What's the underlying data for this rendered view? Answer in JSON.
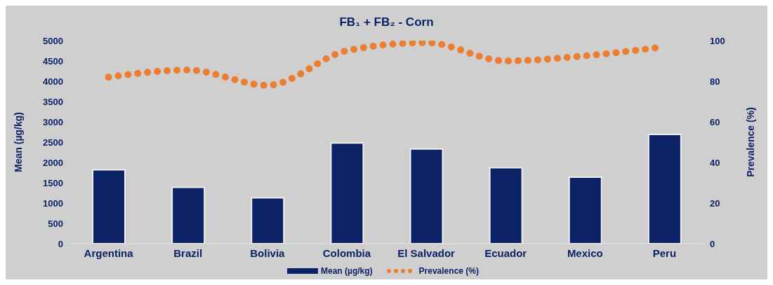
{
  "chart_data": {
    "type": "bar",
    "title": "FB₁ + FB₂ - Corn",
    "ylabel": "Mean (µg/kg)",
    "y2label": "Prevalence (%)",
    "categories": [
      "Argentina",
      "Brazil",
      "Bolivia",
      "Colombia",
      "El Salvador",
      "Ecuador",
      "Mexico",
      "Peru"
    ],
    "series": [
      {
        "name": "Mean (µg/kg)",
        "color": "#0b2366",
        "values": [
          1820,
          1390,
          1130,
          2480,
          2330,
          1870,
          1640,
          2690
        ]
      },
      {
        "name": "Prevalence (%)",
        "type": "line",
        "axis": "y2",
        "color": "#ed7d31",
        "line_style": "dotted",
        "marker": "none",
        "values": [
          82,
          85.5,
          78,
          95,
          99,
          90,
          92.5,
          97
        ]
      }
    ],
    "ylim": [
      0,
      5000
    ],
    "yticks": [
      0,
      500,
      1000,
      1500,
      2000,
      2500,
      3000,
      3500,
      4000,
      4500,
      5000
    ],
    "y2lim": [
      0,
      100
    ],
    "y2ticks": [
      0,
      20,
      40,
      60,
      80,
      100
    ],
    "legend": "bottom"
  }
}
